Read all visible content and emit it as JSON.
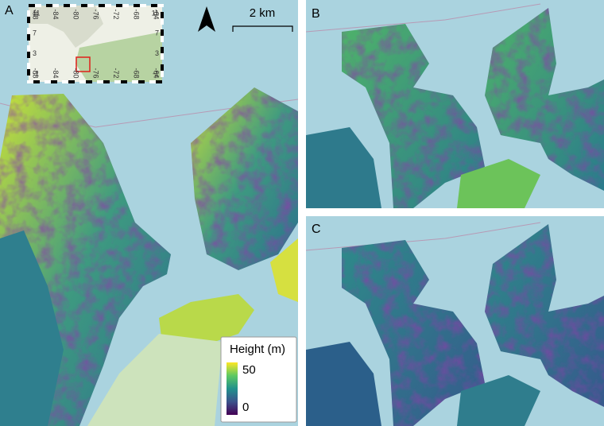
{
  "panels": [
    {
      "label": "A"
    },
    {
      "label": "B"
    },
    {
      "label": "C"
    }
  ],
  "scale_bar": {
    "label": "2 km"
  },
  "legend": {
    "title": "Height (m)",
    "max_label": "50",
    "min_label": "0"
  },
  "inset": {
    "lon_labels": [
      "-88",
      "-84",
      "-80",
      "-76",
      "-72",
      "-68",
      "-64"
    ],
    "lat_labels": [
      "11",
      "7",
      "3",
      "-1"
    ]
  }
}
